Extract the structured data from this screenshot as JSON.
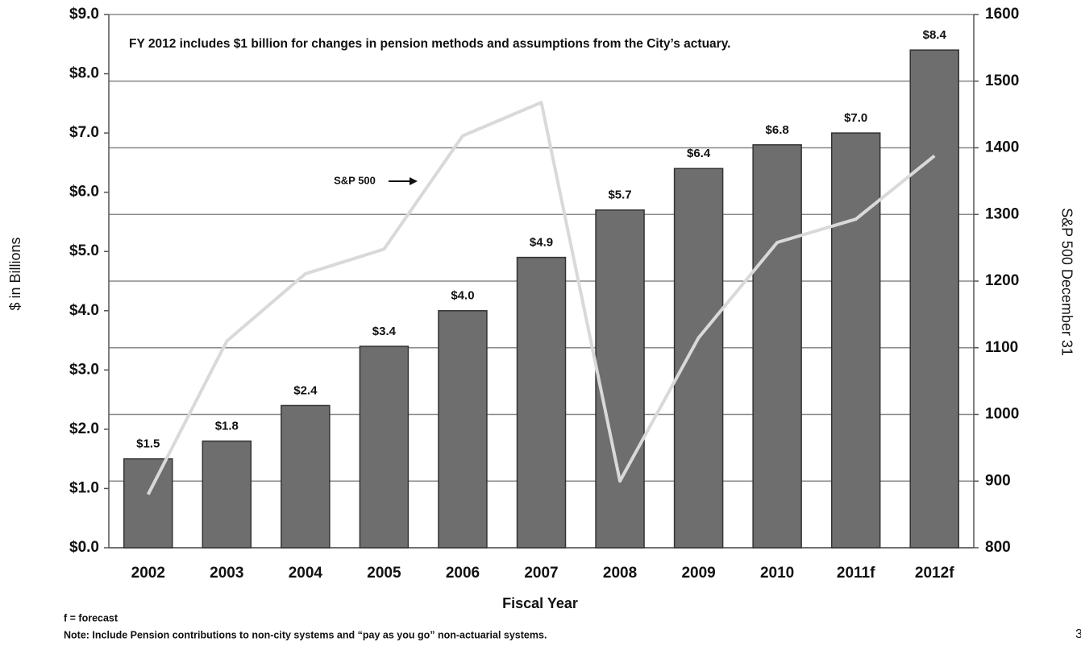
{
  "chart_data": {
    "type": "combo",
    "annotation": "FY 2012 includes $1 billion for changes in pension methods and assumptions from the City’s actuary.",
    "y_label": "$ in Billions",
    "y2_label": "S&P 500 December 31",
    "x_label": "Fiscal Year",
    "categories": [
      "2002",
      "2003",
      "2004",
      "2005",
      "2006",
      "2007",
      "2008",
      "2009",
      "2010",
      "2011f",
      "2012f"
    ],
    "series": [
      {
        "type": "bar",
        "color": "#6e6e6e",
        "values": [
          1.5,
          1.8,
          2.4,
          3.4,
          4.0,
          4.9,
          5.7,
          6.4,
          6.8,
          7.0,
          8.4
        ],
        "value_labels": [
          "$1.5",
          "$1.8",
          "$2.4",
          "$3.4",
          "$4.0",
          "$4.9",
          "$5.7",
          "$6.4",
          "$6.8",
          "$7.0",
          "$8.4"
        ]
      },
      {
        "type": "line",
        "name": "S&P 500",
        "color": "#d9d9d9",
        "axis": "y2",
        "values": [
          880,
          1110,
          1211,
          1248,
          1418,
          1468,
          900,
          1115,
          1258,
          1293,
          1388
        ]
      }
    ],
    "ylim": [
      0,
      9
    ],
    "yticks": [
      {
        "value": 0,
        "label": "$0.0"
      },
      {
        "value": 1,
        "label": "$1.0"
      },
      {
        "value": 2,
        "label": "$2.0"
      },
      {
        "value": 3,
        "label": "$3.0"
      },
      {
        "value": 4,
        "label": "$4.0"
      },
      {
        "value": 5,
        "label": "$5.0"
      },
      {
        "value": 6,
        "label": "$6.0"
      },
      {
        "value": 7,
        "label": "$7.0"
      },
      {
        "value": 8,
        "label": "$8.0"
      },
      {
        "value": 9,
        "label": "$9.0"
      }
    ],
    "y2lim": [
      800,
      1600
    ],
    "y2ticks": [
      800,
      900,
      1000,
      1100,
      1200,
      1300,
      1400,
      1500,
      1600
    ],
    "grid": "y2",
    "footnotes": [
      "f = forecast",
      "Note: Include Pension contributions to non-city systems and “pay as you go” non-actuarial systems."
    ],
    "page_number": "3"
  }
}
